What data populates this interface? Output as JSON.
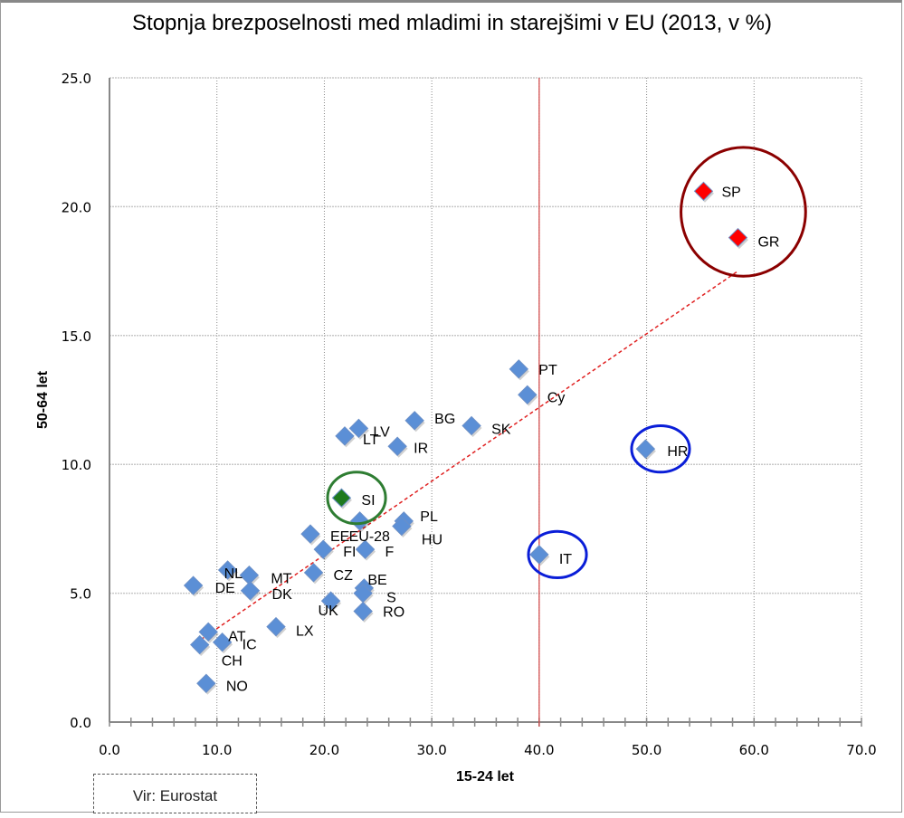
{
  "chart_data": {
    "type": "scatter",
    "title": "Stopnja brezposelnosti med mladimi in starejšimi v EU (2013, v %)",
    "xlabel": "15-24 let",
    "ylabel": "50-64 let",
    "xlim": [
      0,
      70
    ],
    "ylim": [
      0,
      25
    ],
    "xticks": [
      "0.0",
      "10.0",
      "20.0",
      "30.0",
      "40.0",
      "50.0",
      "60.0",
      "70.0"
    ],
    "yticks": [
      "0.0",
      "5.0",
      "10.0",
      "15.0",
      "20.0",
      "25.0"
    ],
    "grid": "vertical and horizontal dotted",
    "reference_line_x": 40,
    "trendline": {
      "style": "red dashed",
      "from": [
        8.5,
        3.2
      ],
      "to": [
        58.5,
        17.5
      ]
    },
    "colors": {
      "default_marker": "#5B8FD6",
      "highlight_red": "#FF0000",
      "highlight_green": "#1E7A1E",
      "circle_red": "#8B0000",
      "circle_green": "#2E7D32",
      "circle_blue": "#0A1ED8",
      "trendline": "#E02020",
      "reference_line": "#D04040"
    },
    "points": [
      {
        "label": "SP",
        "x": 55.3,
        "y": 20.6,
        "color": "red"
      },
      {
        "label": "GR",
        "x": 58.5,
        "y": 18.8,
        "color": "red"
      },
      {
        "label": "PT",
        "x": 38.1,
        "y": 13.7,
        "color": "blue"
      },
      {
        "label": "Cy",
        "x": 38.9,
        "y": 12.7,
        "color": "blue"
      },
      {
        "label": "HR",
        "x": 49.9,
        "y": 10.6,
        "color": "blue"
      },
      {
        "label": "IT",
        "x": 40.0,
        "y": 6.5,
        "color": "blue"
      },
      {
        "label": "SK",
        "x": 33.7,
        "y": 11.5,
        "color": "blue"
      },
      {
        "label": "BG",
        "x": 28.4,
        "y": 11.7,
        "color": "blue"
      },
      {
        "label": "IR",
        "x": 26.8,
        "y": 10.7,
        "color": "blue"
      },
      {
        "label": "LV",
        "x": 23.2,
        "y": 11.4,
        "color": "blue"
      },
      {
        "label": "LT",
        "x": 21.9,
        "y": 11.1,
        "color": "blue"
      },
      {
        "label": "SI",
        "x": 21.6,
        "y": 8.7,
        "color": "green"
      },
      {
        "label": "EU-28",
        "x": 23.3,
        "y": 7.8,
        "color": "blue"
      },
      {
        "label": "PL",
        "x": 27.4,
        "y": 7.8,
        "color": "blue"
      },
      {
        "label": "HU",
        "x": 27.2,
        "y": 7.6,
        "color": "blue"
      },
      {
        "label": "EE",
        "x": 18.7,
        "y": 7.3,
        "color": "blue"
      },
      {
        "label": "FI",
        "x": 19.9,
        "y": 6.7,
        "color": "blue"
      },
      {
        "label": "F",
        "x": 23.8,
        "y": 6.7,
        "color": "blue"
      },
      {
        "label": "CZ",
        "x": 19.0,
        "y": 5.8,
        "color": "blue"
      },
      {
        "label": "BE",
        "x": 23.7,
        "y": 5.2,
        "color": "blue"
      },
      {
        "label": "S",
        "x": 23.6,
        "y": 5.0,
        "color": "blue"
      },
      {
        "label": "UK",
        "x": 20.6,
        "y": 4.7,
        "color": "blue"
      },
      {
        "label": "RO",
        "x": 23.6,
        "y": 4.3,
        "color": "blue"
      },
      {
        "label": "DE",
        "x": 7.8,
        "y": 5.3,
        "color": "blue"
      },
      {
        "label": "NL",
        "x": 11.0,
        "y": 5.9,
        "color": "blue"
      },
      {
        "label": "MT",
        "x": 13.0,
        "y": 5.7,
        "color": "blue"
      },
      {
        "label": "DK",
        "x": 13.1,
        "y": 5.1,
        "color": "blue"
      },
      {
        "label": "LX",
        "x": 15.5,
        "y": 3.7,
        "color": "blue"
      },
      {
        "label": "AT",
        "x": 9.2,
        "y": 3.5,
        "color": "blue"
      },
      {
        "label": "CH",
        "x": 8.4,
        "y": 3.0,
        "color": "blue"
      },
      {
        "label": "IC",
        "x": 10.5,
        "y": 3.1,
        "color": "blue"
      },
      {
        "label": "NO",
        "x": 9.0,
        "y": 1.5,
        "color": "blue"
      }
    ],
    "highlight_circles": [
      {
        "group": [
          "SP",
          "GR"
        ],
        "color": "red",
        "center": [
          59.0,
          19.8
        ],
        "rx_units": 5.8,
        "ry_units": 2.5
      },
      {
        "group": [
          "SI"
        ],
        "color": "green",
        "center": [
          23.0,
          8.7
        ],
        "rx_units": 2.7,
        "ry_units": 1.0
      },
      {
        "group": [
          "HR"
        ],
        "color": "blue",
        "center": [
          51.3,
          10.6
        ],
        "rx_units": 2.7,
        "ry_units": 0.9
      },
      {
        "group": [
          "IT"
        ],
        "color": "blue",
        "center": [
          41.7,
          6.5
        ],
        "rx_units": 2.7,
        "ry_units": 0.9
      }
    ]
  },
  "source_note": "Vir: Eurostat"
}
